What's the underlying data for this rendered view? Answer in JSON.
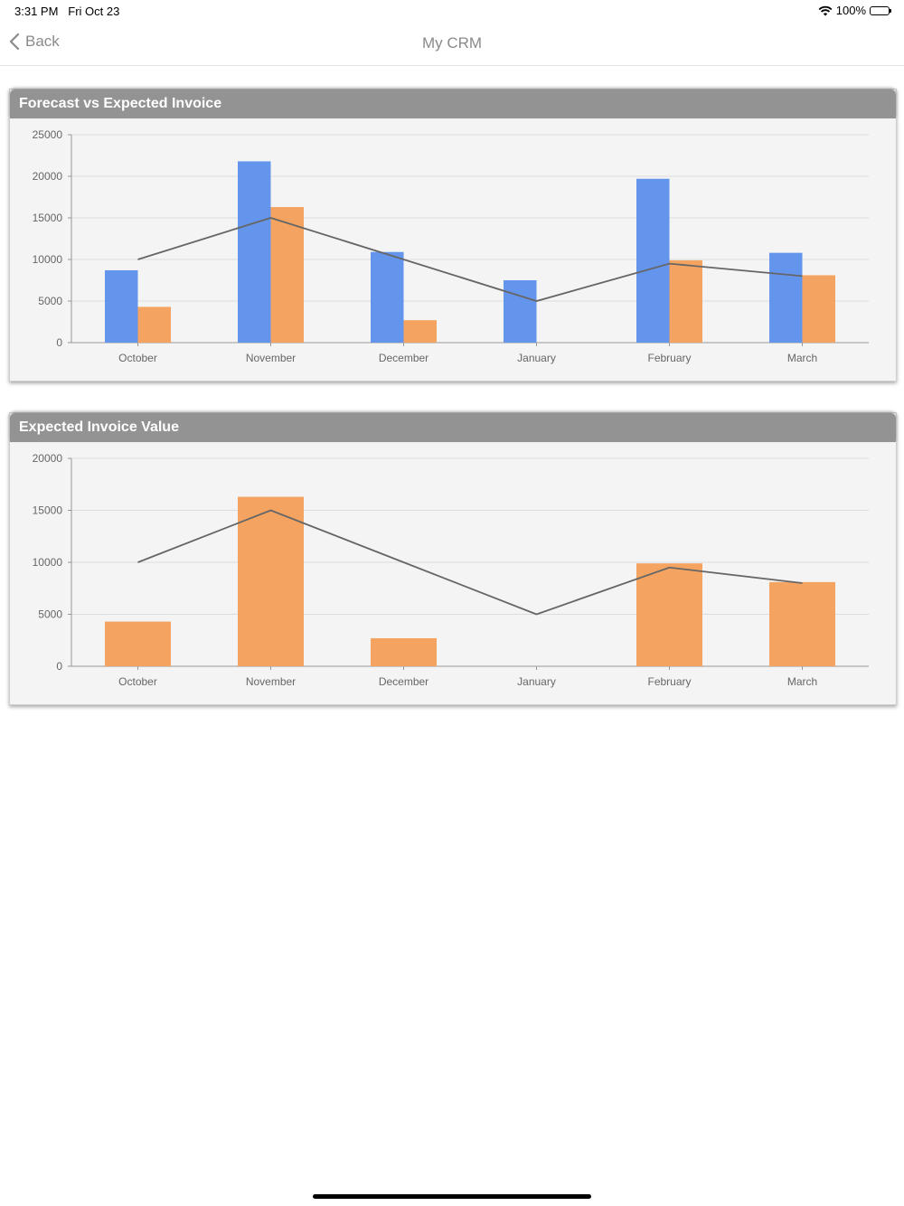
{
  "status_bar": {
    "time": "3:31 PM",
    "date": "Fri Oct 23",
    "battery": "100%"
  },
  "nav": {
    "back_label": "Back",
    "title": "My CRM"
  },
  "colors": {
    "forecast": "#6495ED",
    "expected": "#F4A460",
    "line": "#666666"
  },
  "charts": [
    {
      "title": "Forecast vs Expected Invoice"
    },
    {
      "title": "Expected Invoice Value"
    }
  ],
  "chart_data": [
    {
      "type": "bar",
      "title": "Forecast vs Expected Invoice",
      "categories": [
        "October",
        "November",
        "December",
        "January",
        "February",
        "March"
      ],
      "series": [
        {
          "type": "bar",
          "values": [
            8700,
            21800,
            10900,
            7500,
            19700,
            10800
          ]
        },
        {
          "type": "bar",
          "values": [
            4300,
            16300,
            2700,
            0,
            9900,
            8100
          ]
        },
        {
          "type": "line",
          "values": [
            10000,
            15000,
            10000,
            5000,
            9500,
            8000
          ]
        }
      ],
      "ylim": [
        0,
        25000
      ],
      "yticks": [
        0,
        5000,
        10000,
        15000,
        20000,
        25000
      ],
      "grid": true
    },
    {
      "type": "bar",
      "title": "Expected Invoice Value",
      "categories": [
        "October",
        "November",
        "December",
        "January",
        "February",
        "March"
      ],
      "series": [
        {
          "type": "bar",
          "values": [
            4300,
            16300,
            2700,
            0,
            9900,
            8100
          ]
        },
        {
          "type": "line",
          "values": [
            10000,
            15000,
            10000,
            5000,
            9500,
            8000
          ]
        }
      ],
      "ylim": [
        0,
        20000
      ],
      "yticks": [
        0,
        5000,
        10000,
        15000,
        20000
      ],
      "grid": true
    }
  ]
}
